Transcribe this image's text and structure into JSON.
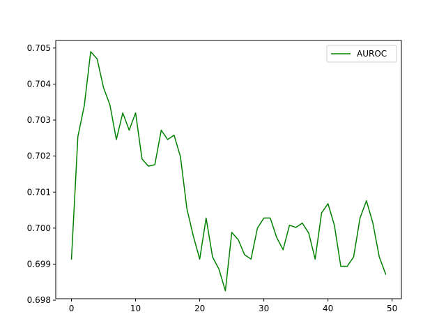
{
  "chart_data": {
    "type": "line",
    "title": "",
    "xlabel": "",
    "ylabel": "",
    "xlim": [
      -2.45,
      51.45
    ],
    "ylim": [
      0.69804,
      0.70521
    ],
    "xticks": [
      0,
      10,
      20,
      30,
      40,
      50
    ],
    "yticks": [
      0.698,
      0.699,
      0.7,
      0.701,
      0.702,
      0.703,
      0.704,
      0.705
    ],
    "xtick_labels": [
      "0",
      "10",
      "20",
      "30",
      "40",
      "50"
    ],
    "ytick_labels": [
      "0.698",
      "0.699",
      "0.700",
      "0.701",
      "0.702",
      "0.703",
      "0.704",
      "0.705"
    ],
    "grid": false,
    "legend_position": "top-right",
    "series": [
      {
        "name": "AUROC",
        "color": "#008000",
        "x": [
          0,
          1,
          2,
          3,
          4,
          5,
          6,
          7,
          8,
          9,
          10,
          11,
          12,
          13,
          14,
          15,
          16,
          17,
          18,
          19,
          20,
          21,
          22,
          23,
          24,
          25,
          26,
          27,
          28,
          29,
          30,
          31,
          32,
          33,
          34,
          35,
          36,
          37,
          38,
          39,
          40,
          41,
          42,
          43,
          44,
          45,
          46,
          47,
          48,
          49
        ],
        "y": [
          0.69914,
          0.70254,
          0.7034,
          0.7049,
          0.7047,
          0.7039,
          0.70342,
          0.70246,
          0.7032,
          0.70272,
          0.7032,
          0.70192,
          0.70172,
          0.70176,
          0.70272,
          0.70246,
          0.70258,
          0.70198,
          0.70054,
          0.69978,
          0.69914,
          0.70028,
          0.6992,
          0.69886,
          0.69826,
          0.69988,
          0.69968,
          0.69926,
          0.69914,
          0.7,
          0.70028,
          0.70028,
          0.69974,
          0.6994,
          0.70008,
          0.70002,
          0.70014,
          0.69986,
          0.69914,
          0.70042,
          0.70068,
          0.70008,
          0.69894,
          0.69894,
          0.6992,
          0.70028,
          0.70076,
          0.70014,
          0.6992,
          0.69872
        ]
      }
    ]
  }
}
